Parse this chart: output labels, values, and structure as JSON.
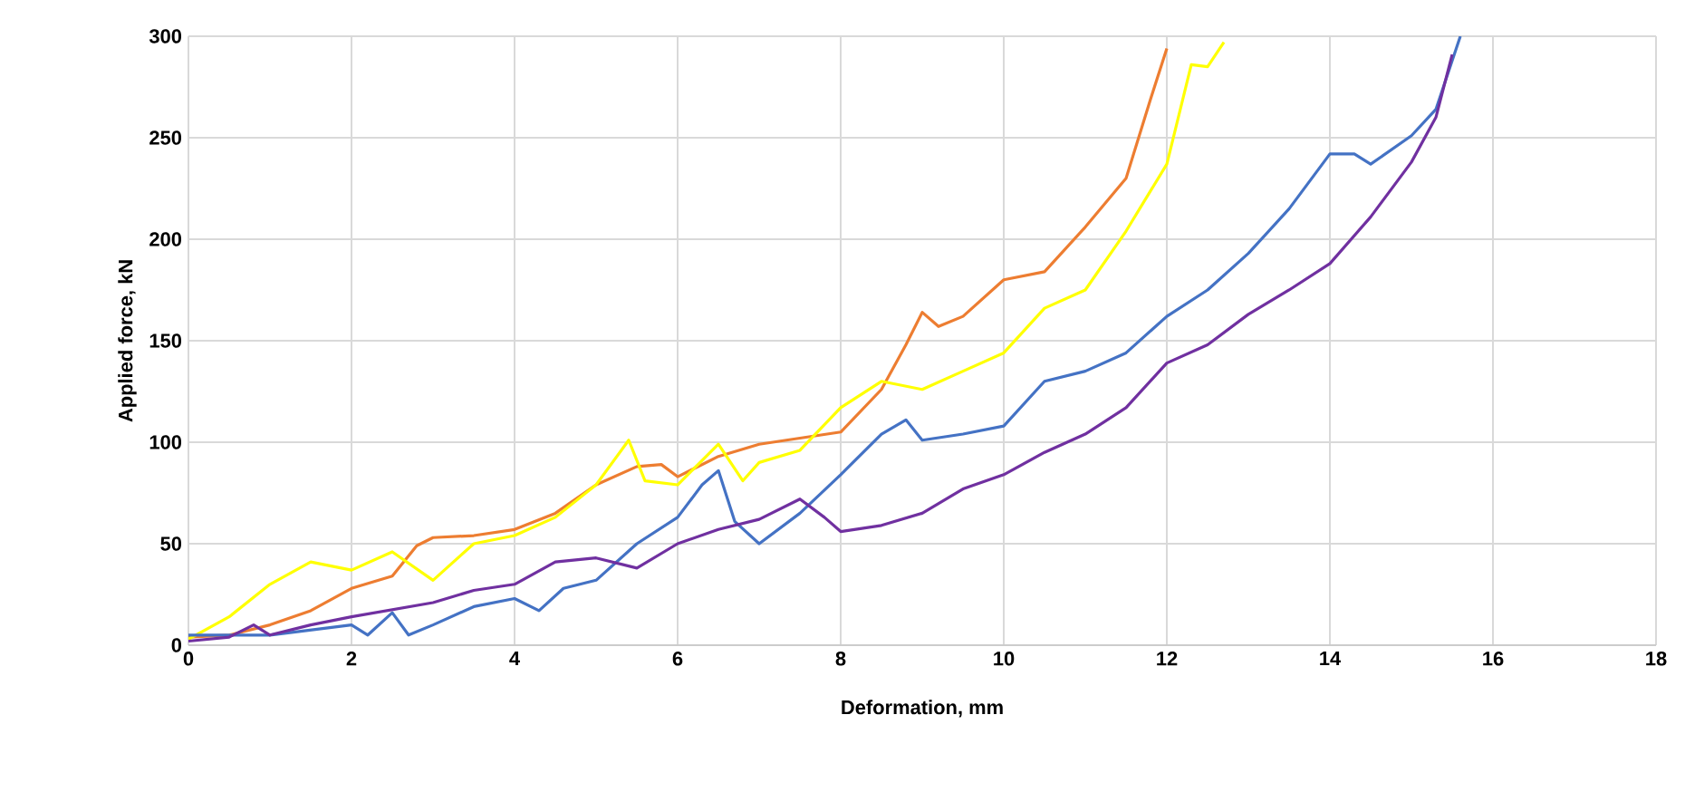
{
  "chart_data": {
    "type": "line",
    "xlabel": "Deformation, mm",
    "ylabel": "Applied force, kN",
    "xlim": [
      0,
      18
    ],
    "ylim": [
      0,
      300
    ],
    "xticks": [
      0,
      2,
      4,
      6,
      8,
      10,
      12,
      14,
      16,
      18
    ],
    "yticks": [
      0,
      50,
      100,
      150,
      200,
      250,
      300
    ],
    "grid": true,
    "marker": "none",
    "line_style": "solid",
    "series": [
      {
        "color": "#ed7d31",
        "x": [
          0,
          0.5,
          1,
          1.5,
          2,
          2.5,
          2.8,
          3,
          3.5,
          4,
          4.5,
          5,
          5.5,
          5.8,
          6,
          6.5,
          7,
          7.5,
          8,
          8.5,
          8.8,
          9,
          9.2,
          9.5,
          10,
          10.5,
          11,
          11.5,
          11.8,
          12
        ],
        "values": [
          4,
          5,
          10,
          17,
          28,
          34,
          49,
          53,
          54,
          57,
          65,
          79,
          88,
          89,
          83,
          93,
          99,
          102,
          105,
          126,
          148,
          164,
          157,
          162,
          180,
          184,
          206,
          230,
          269,
          294
        ]
      },
      {
        "color": "#ffff00",
        "x": [
          0,
          0.5,
          1,
          1.5,
          2,
          2.5,
          3,
          3.5,
          4,
          4.5,
          5,
          5.4,
          5.6,
          6,
          6.5,
          6.8,
          7,
          7.5,
          8,
          8.5,
          9,
          9.5,
          10,
          10.5,
          11,
          11.5,
          12,
          12.3,
          12.5,
          12.7
        ],
        "values": [
          3,
          14,
          30,
          41,
          37,
          46,
          32,
          50,
          54,
          63,
          79,
          101,
          81,
          79,
          99,
          81,
          90,
          96,
          117,
          130,
          126,
          135,
          144,
          166,
          175,
          204,
          237,
          286,
          285,
          297
        ]
      },
      {
        "color": "#4472c4",
        "x": [
          0,
          1,
          2,
          2.2,
          2.5,
          2.7,
          3,
          3.5,
          4,
          4.3,
          4.6,
          5,
          5.5,
          6,
          6.3,
          6.5,
          6.7,
          7,
          7.5,
          8,
          8.5,
          8.8,
          9,
          9.5,
          10,
          10.5,
          11,
          11.5,
          12,
          12.5,
          13,
          13.5,
          14,
          14.3,
          14.5,
          15,
          15.3,
          15.6
        ],
        "values": [
          5,
          5,
          10,
          5,
          16,
          5,
          10,
          19,
          23,
          17,
          28,
          32,
          50,
          63,
          79,
          86,
          61,
          50,
          65,
          84,
          104,
          111,
          101,
          104,
          108,
          130,
          135,
          144,
          162,
          175,
          193,
          215,
          242,
          242,
          237,
          251,
          264,
          300
        ]
      },
      {
        "color": "#7030a0",
        "x": [
          0,
          0.5,
          0.8,
          1,
          1.5,
          2,
          3,
          3.5,
          4,
          4.5,
          5,
          5.5,
          6,
          6.5,
          7,
          7.5,
          7.8,
          8,
          8.5,
          9,
          9.5,
          10,
          10.5,
          11,
          11.5,
          12,
          12.5,
          13,
          13.5,
          14,
          14.5,
          15,
          15.3,
          15.5
        ],
        "values": [
          2,
          4,
          10,
          5,
          10,
          14,
          21,
          27,
          30,
          41,
          43,
          38,
          50,
          57,
          62,
          72,
          63,
          56,
          59,
          65,
          77,
          84,
          95,
          104,
          117,
          139,
          148,
          163,
          175,
          188,
          211,
          238,
          260,
          291
        ]
      }
    ]
  }
}
